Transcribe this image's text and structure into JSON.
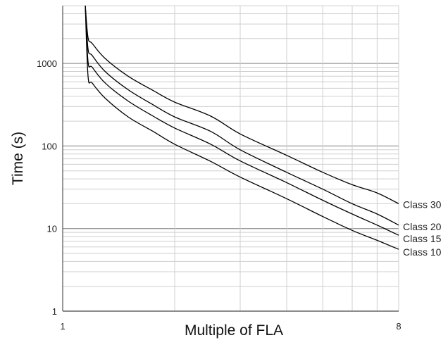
{
  "chart_data": {
    "type": "line",
    "title": "",
    "xlabel": "Multiple of FLA",
    "ylabel": "Time (s)",
    "xscale": "log",
    "yscale": "log",
    "xlim": [
      1,
      8
    ],
    "ylim": [
      1,
      5000
    ],
    "x_ticks": [
      {
        "value": 1,
        "label": "1"
      },
      {
        "value": 8,
        "label": "8"
      }
    ],
    "y_ticks": [
      {
        "value": 1,
        "label": "1"
      },
      {
        "value": 10,
        "label": "10"
      },
      {
        "value": 100,
        "label": "100"
      },
      {
        "value": 1000,
        "label": "1000"
      }
    ],
    "grid": true,
    "legend": "none",
    "line_color": "#000000",
    "grid_major_color": "#9a9a9a",
    "grid_minor_color": "#cfcfcf",
    "series": [
      {
        "name": "Class 30",
        "x": [
          1.15,
          1.17,
          1.2,
          1.3,
          1.5,
          1.75,
          2,
          2.5,
          3,
          4,
          5,
          6,
          7,
          8
        ],
        "y": [
          5000,
          2050,
          1750,
          1150,
          700,
          470,
          340,
          230,
          140,
          77,
          48,
          34,
          27,
          20
        ]
      },
      {
        "name": "Class 20",
        "x": [
          1.15,
          1.17,
          1.2,
          1.3,
          1.5,
          1.75,
          2,
          2.5,
          3,
          4,
          5,
          6,
          7,
          8
        ],
        "y": [
          5000,
          1500,
          1250,
          800,
          480,
          315,
          225,
          150,
          90,
          48,
          30,
          20,
          15,
          11
        ]
      },
      {
        "name": "Class 15",
        "x": [
          1.15,
          1.17,
          1.2,
          1.3,
          1.5,
          1.75,
          2,
          2.5,
          3,
          4,
          5,
          6,
          7,
          8
        ],
        "y": [
          5000,
          1050,
          900,
          580,
          350,
          230,
          165,
          105,
          66,
          36,
          22,
          15,
          11,
          8.3
        ]
      },
      {
        "name": "Class 10",
        "x": [
          1.15,
          1.17,
          1.2,
          1.3,
          1.5,
          1.75,
          2,
          2.5,
          3,
          4,
          5,
          6,
          7,
          8
        ],
        "y": [
          5000,
          700,
          580,
          380,
          225,
          150,
          105,
          65,
          42,
          23,
          14,
          9.5,
          7.2,
          5.6
        ]
      }
    ]
  }
}
